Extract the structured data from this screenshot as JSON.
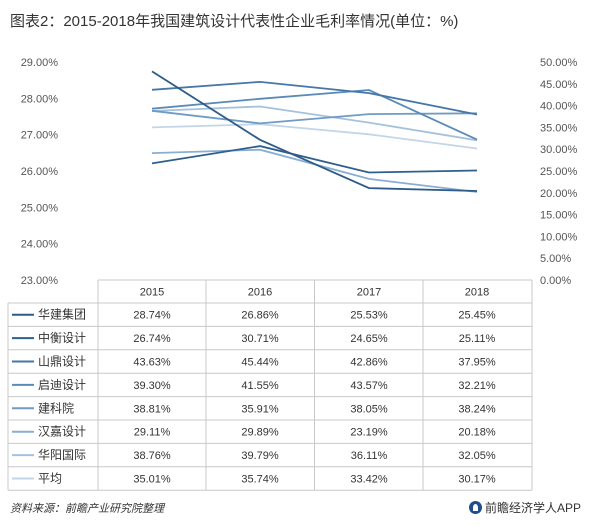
{
  "header": {
    "title": "图表2：2015-2018年我国建筑设计代表性企业毛利率情况(单位：%)"
  },
  "footer": {
    "source": "资料来源：前瞻产业研究院整理",
    "brand": "前瞻经济学人APP"
  },
  "chart_data": {
    "type": "line",
    "categories": [
      "2015",
      "2016",
      "2017",
      "2018"
    ],
    "left_axis": {
      "ticks": [
        "23.00%",
        "24.00%",
        "25.00%",
        "26.00%",
        "27.00%",
        "28.00%",
        "29.00%"
      ],
      "range": [
        23,
        29
      ]
    },
    "right_axis": {
      "ticks": [
        "0.00%",
        "5.00%",
        "10.00%",
        "15.00%",
        "20.00%",
        "25.00%",
        "30.00%",
        "35.00%",
        "40.00%",
        "45.00%",
        "50.00%"
      ],
      "range": [
        0,
        50
      ]
    },
    "series": [
      {
        "name": "华建集团",
        "values": [
          28.74,
          26.86,
          25.53,
          25.45
        ],
        "labels": [
          "28.74%",
          "26.86%",
          "25.53%",
          "25.45%"
        ],
        "axis": "left",
        "color": "#2f5b8a"
      },
      {
        "name": "中衡设计",
        "values": [
          26.74,
          30.71,
          24.65,
          25.11
        ],
        "labels": [
          "26.74%",
          "30.71%",
          "24.65%",
          "25.11%"
        ],
        "axis": "right",
        "color": "#2d5f8f"
      },
      {
        "name": "山鼎设计",
        "values": [
          43.63,
          45.44,
          42.86,
          37.95
        ],
        "labels": [
          "43.63%",
          "45.44%",
          "42.86%",
          "37.95%"
        ],
        "axis": "right",
        "color": "#4677a6"
      },
      {
        "name": "启迪设计",
        "values": [
          39.3,
          41.55,
          43.57,
          32.21
        ],
        "labels": [
          "39.30%",
          "41.55%",
          "43.57%",
          "32.21%"
        ],
        "axis": "right",
        "color": "#5a8bb8"
      },
      {
        "name": "建科院",
        "values": [
          38.81,
          35.91,
          38.05,
          38.24
        ],
        "labels": [
          "38.81%",
          "35.91%",
          "38.05%",
          "38.24%"
        ],
        "axis": "right",
        "color": "#6f9bc4"
      },
      {
        "name": "汉嘉设计",
        "values": [
          29.11,
          29.89,
          23.19,
          20.18
        ],
        "labels": [
          "29.11%",
          "29.89%",
          "23.19%",
          "20.18%"
        ],
        "axis": "right",
        "color": "#89aed1"
      },
      {
        "name": "华阳国际",
        "values": [
          38.76,
          39.79,
          36.11,
          32.05
        ],
        "labels": [
          "38.76%",
          "39.79%",
          "36.11%",
          "32.05%"
        ],
        "axis": "right",
        "color": "#a5c2dd"
      },
      {
        "name": "平均",
        "values": [
          35.01,
          35.74,
          33.42,
          30.17
        ],
        "labels": [
          "35.01%",
          "35.74%",
          "33.42%",
          "30.17%"
        ],
        "axis": "right",
        "color": "#c3d6e9"
      }
    ]
  }
}
